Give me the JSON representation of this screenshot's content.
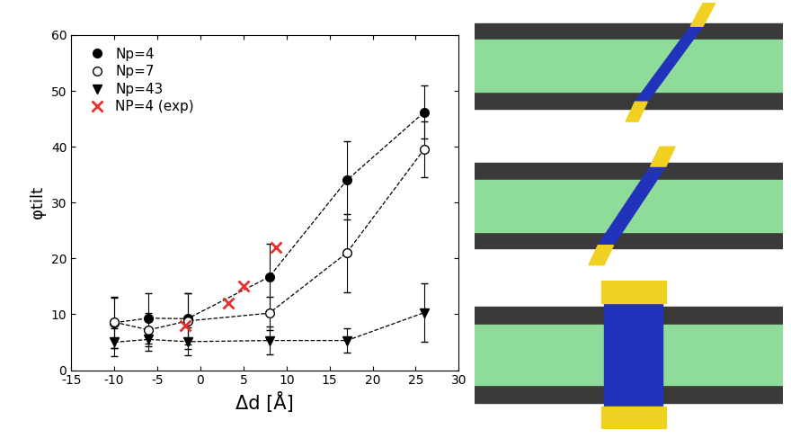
{
  "chart_data": {
    "type": "line",
    "x_label": "Δd [Å]",
    "y_label": "φtilt",
    "xlim": [
      -15,
      30
    ],
    "xticks": [
      -15,
      -10,
      -5,
      0,
      5,
      10,
      15,
      20,
      25,
      30
    ],
    "ylim": [
      0,
      60
    ],
    "yticks": [
      0,
      10,
      20,
      30,
      40,
      50,
      60
    ],
    "legend": "upper left",
    "series": [
      {
        "name": "Np=4",
        "color": "#000000",
        "marker": "circle",
        "line_style": "dashed",
        "x": [
          -10,
          -6,
          -1.5,
          8,
          17,
          26
        ],
        "values": [
          8.5,
          9.3,
          9.2,
          16.7,
          34,
          46.2
        ],
        "errors": [
          4.5,
          4.5,
          4.6,
          6,
          7,
          4.7
        ]
      },
      {
        "name": "Np=7",
        "color": "#000000",
        "marker": "open_circle",
        "line_style": "dashed",
        "x": [
          -10,
          -6,
          -1.5,
          8,
          17,
          26
        ],
        "values": [
          8.6,
          7.2,
          8.8,
          10.2,
          21,
          39.6
        ],
        "errors": [
          4.6,
          3,
          5,
          3,
          7,
          5
        ]
      },
      {
        "name": "Np=43",
        "color": "#000000",
        "marker": "triangle_down",
        "line_style": "dashed",
        "x": [
          -10,
          -6,
          -1.5,
          8,
          17,
          26
        ],
        "values": [
          5,
          5.5,
          5.1,
          5.3,
          5.3,
          10.3
        ],
        "errors": [
          2.5,
          2,
          2.5,
          2.5,
          2.2,
          5.3
        ]
      },
      {
        "name": "NP=4 (exp)",
        "color": "#e8312f",
        "marker": "x",
        "line_style": "none",
        "x": [
          -1.8,
          3.2,
          5,
          8.8
        ],
        "values": [
          8,
          12,
          15,
          22
        ]
      }
    ]
  }
}
